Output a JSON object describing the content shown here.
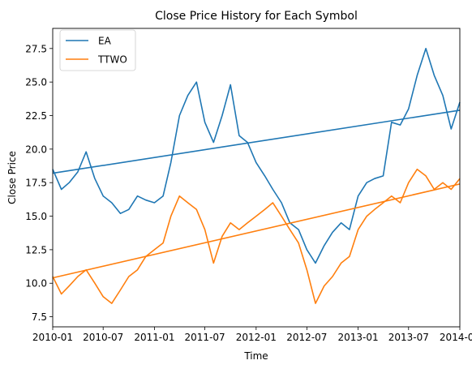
{
  "chart_data": {
    "type": "line",
    "title": "Close Price History for Each Symbol",
    "xlabel": "Time",
    "ylabel": "Close Price",
    "xlim": [
      "2010-01-01",
      "2014-01-01"
    ],
    "ylim": [
      6.75,
      29.0
    ],
    "x_ticks": [
      "2010-01",
      "2010-07",
      "2011-01",
      "2011-07",
      "2012-01",
      "2012-07",
      "2013-01",
      "2013-07",
      "2014-01"
    ],
    "y_ticks": [
      7.5,
      10.0,
      12.5,
      15.0,
      17.5,
      20.0,
      22.5,
      25.0,
      27.5
    ],
    "y_tick_labels": [
      "7.5",
      "10.0",
      "12.5",
      "15.0",
      "17.5",
      "20.0",
      "22.5",
      "25.0",
      "27.5"
    ],
    "grid": false,
    "legend": "top-left",
    "series": [
      {
        "name": "EA",
        "color": "#1f77b4",
        "x": [
          "2010-01-01",
          "2010-02-01",
          "2010-03-01",
          "2010-04-01",
          "2010-05-01",
          "2010-06-01",
          "2010-07-01",
          "2010-08-01",
          "2010-09-01",
          "2010-10-01",
          "2010-11-01",
          "2010-12-01",
          "2011-01-01",
          "2011-02-01",
          "2011-03-01",
          "2011-04-01",
          "2011-05-01",
          "2011-06-01",
          "2011-07-01",
          "2011-08-01",
          "2011-09-01",
          "2011-10-01",
          "2011-11-01",
          "2011-12-01",
          "2012-01-01",
          "2012-02-01",
          "2012-03-01",
          "2012-04-01",
          "2012-05-01",
          "2012-06-01",
          "2012-07-01",
          "2012-08-01",
          "2012-09-01",
          "2012-10-01",
          "2012-11-01",
          "2012-12-01",
          "2013-01-01",
          "2013-02-01",
          "2013-03-01",
          "2013-04-01",
          "2013-05-01",
          "2013-06-01",
          "2013-07-01",
          "2013-08-01",
          "2013-09-01",
          "2013-10-01",
          "2013-11-01",
          "2013-12-01",
          "2014-01-01"
        ],
        "values": [
          18.5,
          17.0,
          17.5,
          18.3,
          19.8,
          17.8,
          16.5,
          16.0,
          15.2,
          15.5,
          16.5,
          16.2,
          16.0,
          16.5,
          19.0,
          22.5,
          24.0,
          25.0,
          22.0,
          20.5,
          22.5,
          24.8,
          21.0,
          20.5,
          19.0,
          18.0,
          17.0,
          16.0,
          14.5,
          14.0,
          12.5,
          11.5,
          12.8,
          13.8,
          14.5,
          14.0,
          16.5,
          17.5,
          17.8,
          18.0,
          22.0,
          21.8,
          23.0,
          25.5,
          27.5,
          25.5,
          24.0,
          21.5,
          23.5
        ]
      },
      {
        "name": "TTWO",
        "color": "#ff7f0e",
        "x": [
          "2010-01-01",
          "2010-02-01",
          "2010-03-01",
          "2010-04-01",
          "2010-05-01",
          "2010-06-01",
          "2010-07-01",
          "2010-08-01",
          "2010-09-01",
          "2010-10-01",
          "2010-11-01",
          "2010-12-01",
          "2011-01-01",
          "2011-02-01",
          "2011-03-01",
          "2011-04-01",
          "2011-05-01",
          "2011-06-01",
          "2011-07-01",
          "2011-08-01",
          "2011-09-01",
          "2011-10-01",
          "2011-11-01",
          "2011-12-01",
          "2012-01-01",
          "2012-02-01",
          "2012-03-01",
          "2012-04-01",
          "2012-05-01",
          "2012-06-01",
          "2012-07-01",
          "2012-08-01",
          "2012-09-01",
          "2012-10-01",
          "2012-11-01",
          "2012-12-01",
          "2013-01-01",
          "2013-02-01",
          "2013-03-01",
          "2013-04-01",
          "2013-05-01",
          "2013-06-01",
          "2013-07-01",
          "2013-08-01",
          "2013-09-01",
          "2013-10-01",
          "2013-11-01",
          "2013-12-01",
          "2014-01-01"
        ],
        "values": [
          10.5,
          9.2,
          9.8,
          10.5,
          11.0,
          10.0,
          9.0,
          8.5,
          9.5,
          10.5,
          11.0,
          12.0,
          12.5,
          13.0,
          15.0,
          16.5,
          16.0,
          15.5,
          14.0,
          11.5,
          13.5,
          14.5,
          14.0,
          14.5,
          15.0,
          15.5,
          16.0,
          15.0,
          14.0,
          13.0,
          11.0,
          8.5,
          9.8,
          10.5,
          11.5,
          12.0,
          14.0,
          15.0,
          15.5,
          16.0,
          16.5,
          16.0,
          17.5,
          18.5,
          18.0,
          17.0,
          17.5,
          17.0,
          17.8
        ]
      },
      {
        "name": "",
        "color": "#1f77b4",
        "x": [
          "2010-01-01",
          "2014-01-01"
        ],
        "values": [
          18.2,
          22.9
        ]
      },
      {
        "name": "",
        "color": "#ff7f0e",
        "x": [
          "2010-01-01",
          "2014-01-01"
        ],
        "values": [
          10.4,
          17.4
        ]
      }
    ]
  }
}
